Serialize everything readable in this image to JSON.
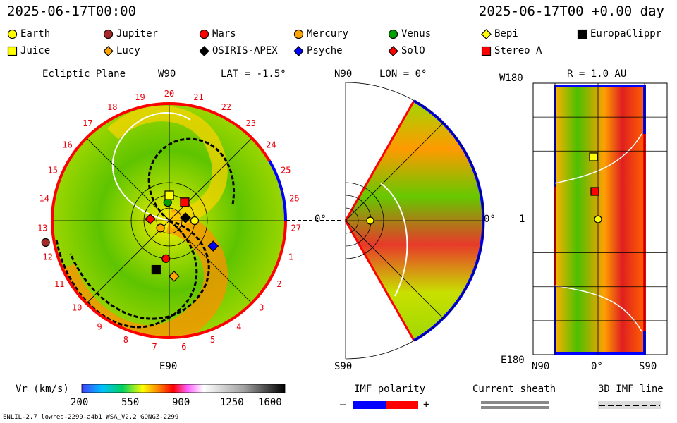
{
  "header": {
    "left_time": "2025-06-17T00:00",
    "right_time": "2025-06-17T00 +0.00 day"
  },
  "legend": [
    {
      "name": "Earth",
      "shape": "circle",
      "color": "#ffff00"
    },
    {
      "name": "Jupiter",
      "shape": "circle",
      "color": "#a52a2a"
    },
    {
      "name": "Mars",
      "shape": "circle",
      "color": "#ff0000"
    },
    {
      "name": "Mercury",
      "shape": "circle",
      "color": "#ffa500"
    },
    {
      "name": "Venus",
      "shape": "circle",
      "color": "#00a000"
    },
    {
      "name": "Bepi",
      "shape": "diamond",
      "color": "#ffff00"
    },
    {
      "name": "EuropaClippr",
      "shape": "square",
      "color": "#000000"
    },
    {
      "name": "Juice",
      "shape": "square",
      "color": "#ffff00"
    },
    {
      "name": "Lucy",
      "shape": "diamond",
      "color": "#ffa500"
    },
    {
      "name": "OSIRIS-APEX",
      "shape": "diamond",
      "color": "#000000"
    },
    {
      "name": "Psyche",
      "shape": "diamond",
      "color": "#0000ff"
    },
    {
      "name": "SolO",
      "shape": "diamond",
      "color": "#ff0000"
    },
    {
      "name": "Stereo_A",
      "shape": "square",
      "color": "#ff0000"
    }
  ],
  "panels": {
    "ecliptic": {
      "title": "Ecliptic Plane",
      "top_label": "W90",
      "lat_label": "LAT = -1.5°",
      "bottom_label": "E90",
      "right_label": "0°"
    },
    "meridional": {
      "top_label": "N90",
      "lon_label": "LON = 0°",
      "bottom_label": "S90",
      "right_label": "0°"
    },
    "radial": {
      "top_left": "W180",
      "r_label": "R = 1.0 AU",
      "mid_left": "1",
      "bottom_left": "E180",
      "x_left": "N90",
      "x_mid": "0°",
      "x_right": "S90"
    }
  },
  "carrington_labels": [
    "20",
    "21",
    "22",
    "23",
    "24",
    "25",
    "26",
    "27",
    "1",
    "2",
    "3",
    "4",
    "5",
    "6",
    "7",
    "8",
    "9",
    "10",
    "11",
    "12",
    "13",
    "14",
    "15",
    "16",
    "17",
    "18",
    "19"
  ],
  "colorbar": {
    "label": "Vr (km/s)",
    "ticks": [
      "200",
      "550",
      "900",
      "1250",
      "1600"
    ],
    "vmin": 200,
    "vmax": 1600
  },
  "imf": {
    "label": "IMF polarity",
    "minus": "–",
    "plus": "+",
    "neg_color": "#0000ff",
    "pos_color": "#ff0000"
  },
  "sheath": {
    "label": "Current sheath"
  },
  "imfline": {
    "label": "3D IMF line"
  },
  "footer": {
    "model": "ENLIL-2.7 lowres-2299-a4b1 WSA_V2.2 GONGZ-2299"
  },
  "chart_data": [
    {
      "type": "heatmap",
      "title": "Ecliptic Plane",
      "variable": "Vr (km/s)",
      "range": [
        200,
        1600
      ],
      "bodies": [
        {
          "name": "Earth",
          "r_au": 1.0,
          "angle_deg": 0
        },
        {
          "name": "Jupiter",
          "r_au": 5.2,
          "angle_deg": 190
        },
        {
          "name": "Mars",
          "r_au": 1.5,
          "angle_deg": 265
        },
        {
          "name": "Mercury",
          "r_au": 0.45,
          "angle_deg": 220
        },
        {
          "name": "Venus",
          "r_au": 0.72,
          "angle_deg": 95
        },
        {
          "name": "Stereo_A",
          "r_au": 0.95,
          "angle_deg": 50
        },
        {
          "name": "Juice",
          "r_au": 1.0,
          "angle_deg": 90
        },
        {
          "name": "EuropaClippr",
          "r_au": 2.0,
          "angle_deg": 255
        },
        {
          "name": "Psyche",
          "r_au": 2.0,
          "angle_deg": 330
        },
        {
          "name": "Lucy",
          "r_au": 2.2,
          "angle_deg": 275
        },
        {
          "name": "SolO",
          "r_au": 0.75,
          "angle_deg": 175
        },
        {
          "name": "OSIRIS-APEX",
          "r_au": 0.65,
          "angle_deg": 10
        }
      ]
    },
    {
      "type": "heatmap",
      "title": "Meridional plane",
      "lon": "0°",
      "bodies": [
        {
          "name": "Earth",
          "r_au": 1.0,
          "lat_deg": 0
        }
      ]
    },
    {
      "type": "heatmap",
      "title": "R = 1.0 AU",
      "x_range": [
        "N90",
        "S90"
      ],
      "y_range": [
        "E180",
        "W180"
      ],
      "bodies": [
        {
          "name": "Earth",
          "lat_deg": 0,
          "lon_deg": 0
        },
        {
          "name": "Juice",
          "lat_deg": -10,
          "lon_deg": 90
        },
        {
          "name": "Stereo_A",
          "lat_deg": -8,
          "lon_deg": 40
        }
      ]
    }
  ]
}
